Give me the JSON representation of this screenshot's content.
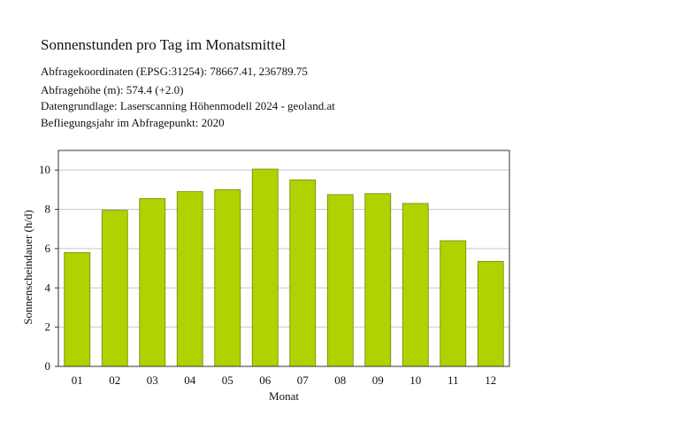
{
  "header": {
    "title": "Sonnenstunden pro Tag im Monatsmittel",
    "lines": [
      "Abfragekoordinaten (EPSG:31254): 78667.41, 236789.75",
      "Abfragehöhe (m): 574.4 (+2.0)",
      "Datengrundlage: Laserscanning Höhenmodell 2024 - geoland.at",
      "Befliegungsjahr im Abfragepunkt: 2020"
    ]
  },
  "chart_data": {
    "type": "bar",
    "title": "Sonnenstunden pro Tag im Monatsmittel",
    "xlabel": "Monat",
    "ylabel": "Sonnenscheindauer (h/d)",
    "categories": [
      "01",
      "02",
      "03",
      "04",
      "05",
      "06",
      "07",
      "08",
      "09",
      "10",
      "11",
      "12"
    ],
    "values": [
      5.8,
      7.95,
      8.55,
      8.9,
      9.0,
      10.05,
      9.5,
      8.75,
      8.8,
      8.3,
      6.4,
      5.35
    ],
    "ylim": [
      0,
      11
    ],
    "yticks": [
      0,
      2,
      4,
      6,
      8,
      10
    ],
    "grid": true,
    "colors": {
      "bar": "#b2d100",
      "bar_edge": "#6e8a00",
      "grid": "#c8c8c8",
      "axis": "#333333"
    }
  }
}
